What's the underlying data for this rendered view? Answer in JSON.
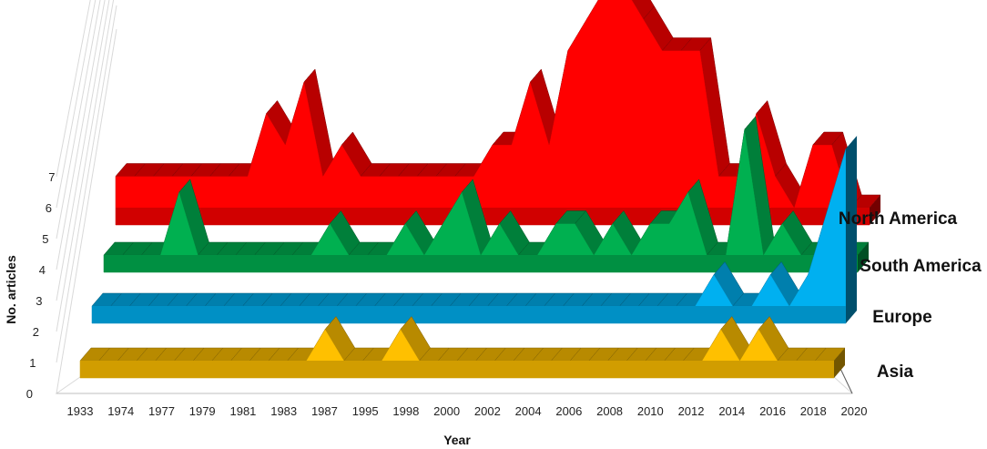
{
  "chart_data": {
    "type": "area",
    "variant": "3d-ribbon",
    "xlabel": "Year",
    "ylabel": "No. articles",
    "ylim": [
      0,
      7
    ],
    "yticks": [
      "0",
      "1",
      "2",
      "3",
      "4",
      "5",
      "6",
      "7"
    ],
    "grid": true,
    "legend": "series names at right end of each ribbon",
    "categories": [
      "1933",
      "1974",
      "1977",
      "1979",
      "1981",
      "1983",
      "1987",
      "1995",
      "1998",
      "2000",
      "2002",
      "2004",
      "2006",
      "2008",
      "2010",
      "2012",
      "2014",
      "2016",
      "2018",
      "2020"
    ],
    "year_axis": {
      "points": [
        1933,
        1974,
        1976,
        1977,
        1978,
        1979,
        1980,
        1981,
        1982,
        1983,
        1984,
        1985,
        1986,
        1987,
        1988,
        1995,
        1996,
        1997,
        1998,
        1999,
        2000,
        2001,
        2002,
        2003,
        2004,
        2005,
        2006,
        2007,
        2008,
        2009,
        2010,
        2011,
        2012,
        2013,
        2014,
        2015,
        2016,
        2017,
        2018,
        2019,
        2020
      ],
      "tick_labels": [
        "1933",
        "1974",
        "1977",
        "1979",
        "1981",
        "1983",
        "1987",
        "1995",
        "1998",
        "2000",
        "2002",
        "2004",
        "2006",
        "2008",
        "2010",
        "2012",
        "2014",
        "2016",
        "2018",
        "2020"
      ]
    },
    "series": [
      {
        "name": "North America",
        "color": "#ff0000",
        "values": {
          "1933": 1,
          "1974": 1,
          "1976": 1,
          "1977": 1,
          "1978": 1,
          "1979": 1,
          "1980": 1,
          "1981": 1,
          "1982": 3,
          "1983": 2,
          "1984": 4,
          "1985": 1,
          "1986": 2,
          "1987": 1,
          "1988": 1,
          "1995": 1,
          "1996": 1,
          "1997": 1,
          "1998": 1,
          "1999": 1,
          "2000": 2,
          "2001": 2,
          "2002": 4,
          "2003": 2,
          "2004": 5,
          "2005": 6,
          "2006": 7,
          "2007": 7,
          "2008": 6,
          "2009": 5,
          "2010": 5,
          "2011": 5,
          "2012": 1,
          "2013": 1,
          "2014": 3,
          "2015": 1,
          "2016": 0,
          "2017": 2,
          "2018": 2,
          "2019": 0,
          "2020": 0
        }
      },
      {
        "name": "South America",
        "color": "#00b050",
        "values": {
          "1933": 0,
          "1974": 0,
          "1976": 0,
          "1977": 0,
          "1978": 2,
          "1979": 0,
          "1980": 0,
          "1981": 0,
          "1982": 0,
          "1983": 0,
          "1984": 0,
          "1985": 0,
          "1986": 1,
          "1987": 0,
          "1988": 0,
          "1995": 0,
          "1996": 1,
          "1997": 0,
          "1998": 1,
          "1999": 2,
          "2000": 0,
          "2001": 1,
          "2002": 0,
          "2003": 0,
          "2004": 1,
          "2005": 1,
          "2006": 0,
          "2007": 1,
          "2008": 0,
          "2009": 1,
          "2010": 1,
          "2011": 2,
          "2012": 0,
          "2013": 0,
          "2014": 4,
          "2015": 0,
          "2016": 1,
          "2017": 0,
          "2018": 0,
          "2019": 0,
          "2020": 0
        }
      },
      {
        "name": "Europe",
        "color": "#00b0f0",
        "values": {
          "1933": 0,
          "1974": 0,
          "1976": 0,
          "1977": 0,
          "1978": 0,
          "1979": 0,
          "1980": 0,
          "1981": 0,
          "1982": 0,
          "1983": 0,
          "1984": 0,
          "1985": 0,
          "1986": 0,
          "1987": 0,
          "1988": 0,
          "1995": 0,
          "1996": 0,
          "1997": 0,
          "1998": 0,
          "1999": 0,
          "2000": 0,
          "2001": 0,
          "2002": 0,
          "2003": 0,
          "2004": 0,
          "2005": 0,
          "2006": 0,
          "2007": 0,
          "2008": 0,
          "2009": 0,
          "2010": 0,
          "2011": 0,
          "2012": 0,
          "2013": 1,
          "2014": 0,
          "2015": 0,
          "2016": 1,
          "2017": 0,
          "2018": 1,
          "2019": 3,
          "2020": 5
        }
      },
      {
        "name": "Asia",
        "color": "#ffc000",
        "values": {
          "1933": 0,
          "1974": 0,
          "1976": 0,
          "1977": 0,
          "1978": 0,
          "1979": 0,
          "1980": 0,
          "1981": 0,
          "1982": 0,
          "1983": 0,
          "1984": 0,
          "1985": 0,
          "1986": 0,
          "1987": 1,
          "1988": 0,
          "1995": 0,
          "1996": 0,
          "1997": 1,
          "1998": 0,
          "1999": 0,
          "2000": 0,
          "2001": 0,
          "2002": 0,
          "2003": 0,
          "2004": 0,
          "2005": 0,
          "2006": 0,
          "2007": 0,
          "2008": 0,
          "2009": 0,
          "2010": 0,
          "2011": 0,
          "2012": 0,
          "2013": 0,
          "2014": 1,
          "2015": 0,
          "2016": 1,
          "2017": 0,
          "2018": 0,
          "2019": 0,
          "2020": 0
        }
      }
    ]
  }
}
